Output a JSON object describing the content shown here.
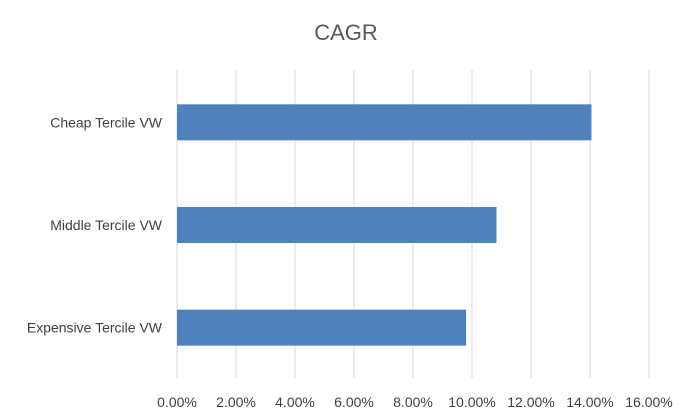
{
  "chart_data": {
    "type": "bar",
    "orientation": "horizontal",
    "title": "CAGR",
    "xlabel": "",
    "ylabel": "",
    "categories": [
      "Cheap Tercile VW",
      "Middle Tercile VW",
      "Expensive Tercile VW"
    ],
    "values": [
      0.1405,
      0.1083,
      0.098
    ],
    "xlim": [
      0,
      0.16
    ],
    "xticks": [
      0,
      0.02,
      0.04,
      0.06,
      0.08,
      0.1,
      0.12,
      0.14,
      0.16
    ],
    "xtick_labels": [
      "0.00%",
      "2.00%",
      "4.00%",
      "6.00%",
      "8.00%",
      "10.00%",
      "12.00%",
      "14.00%",
      "16.00%"
    ],
    "grid": true,
    "legend": "none",
    "bar_color": "#4f81bd",
    "grid_color": "#d9d9d9"
  }
}
